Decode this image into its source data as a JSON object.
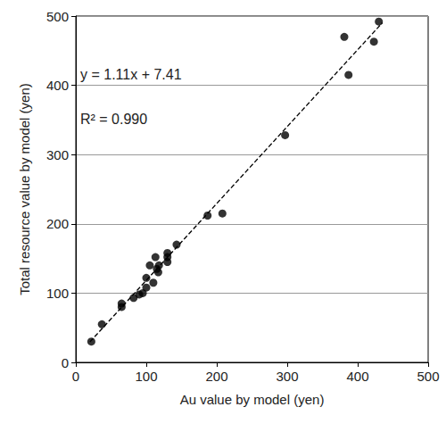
{
  "chart_data": {
    "type": "scatter",
    "x_label": "Au value by model (yen)",
    "y_label": "Total resource value by model (yen)",
    "annotations": [
      "y = 1.11x + 7.41",
      "R² = 0.990"
    ],
    "x": [
      22,
      37,
      65,
      65,
      82,
      90,
      95,
      100,
      100,
      105,
      110,
      113,
      115,
      117,
      118,
      130,
      130,
      130,
      143,
      187,
      208,
      297,
      381,
      387,
      423,
      430
    ],
    "values": [
      30,
      55,
      80,
      85,
      93,
      98,
      100,
      108,
      122,
      140,
      115,
      152,
      135,
      130,
      140,
      145,
      152,
      158,
      170,
      212,
      215,
      328,
      470,
      415,
      463,
      492
    ],
    "color": "#000000",
    "marker": "circle",
    "fit_line": {
      "x": [
        20,
        435
      ],
      "values": [
        29.6,
        490.3
      ],
      "line_style": "dashed",
      "color": "#000000"
    },
    "xlim": [
      0,
      500
    ],
    "xticks": [
      0,
      100,
      200,
      300,
      400,
      500
    ],
    "ylim": [
      0,
      500
    ],
    "yticks": [
      0,
      100,
      200,
      300,
      400,
      500
    ],
    "grid": true
  }
}
